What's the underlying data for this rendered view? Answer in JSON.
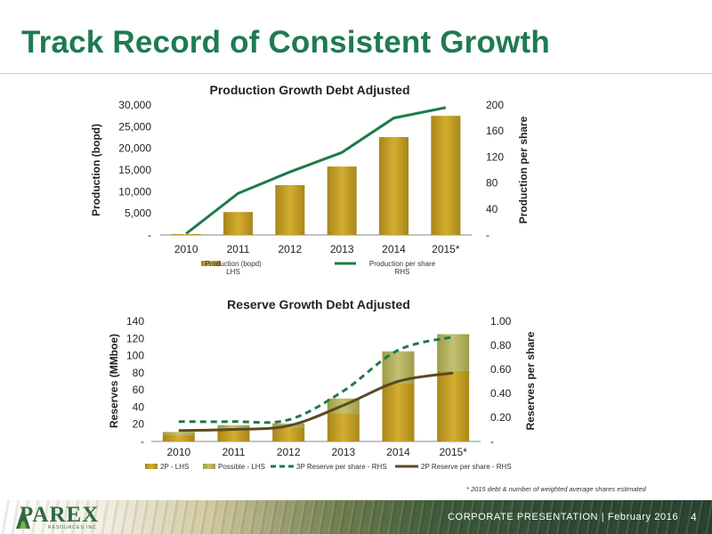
{
  "slide": {
    "title": "Track Record of Consistent Growth"
  },
  "colors": {
    "title_green": "#1f7a52",
    "bar_gold": "#c9a227",
    "bar_light": "#b7b45a",
    "line_green": "#1e7a4a",
    "line_brown": "#5a4a1e"
  },
  "footnote": "* 2015 debt & number of weighted average shares estimated",
  "footer": {
    "text": "CORPORATE PRESENTATION | February 2016",
    "page": "4",
    "logo_text": "PAREX",
    "logo_subtext": "RESOURCES INC"
  },
  "chart_data": [
    {
      "type": "bar",
      "title": "Production Growth Debt Adjusted",
      "categories": [
        "2010",
        "2011",
        "2012",
        "2013",
        "2014",
        "2015*"
      ],
      "ylabel": "Production (bopd)",
      "y2label": "Production per share",
      "ylim": [
        0,
        30000
      ],
      "y2lim": [
        0,
        200
      ],
      "yticks": [
        "-",
        "5,000",
        "10,000",
        "15,000",
        "20,000",
        "25,000",
        "30,000"
      ],
      "y2ticks": [
        "-",
        "40",
        "80",
        "120",
        "160",
        "200"
      ],
      "series": [
        {
          "name": "Production (bopd)\nLHS",
          "type": "bar",
          "axis": "left",
          "values": [
            200,
            5300,
            11500,
            15800,
            22600,
            27500
          ]
        },
        {
          "name": "Production per share\nRHS",
          "type": "line",
          "axis": "right",
          "values": [
            2,
            64,
            97,
            127,
            180,
            196
          ]
        }
      ],
      "legend": "bottom"
    },
    {
      "type": "bar",
      "title": "Reserve Growth Debt Adjusted",
      "categories": [
        "2010",
        "2011",
        "2012",
        "2013",
        "2014",
        "2015*"
      ],
      "ylabel": "Reserves (MMboe)",
      "y2label": "Reserves per share",
      "ylim": [
        0,
        140
      ],
      "y2lim": [
        0,
        1.0
      ],
      "yticks": [
        "-",
        "20",
        "40",
        "60",
        "80",
        "100",
        "120",
        "140"
      ],
      "y2ticks": [
        "-",
        "0.20",
        "0.40",
        "0.60",
        "0.80",
        "1.00"
      ],
      "series": [
        {
          "name": "2P - LHS",
          "type": "stacked-bar",
          "axis": "left",
          "values": [
            8,
            14,
            16,
            33,
            68,
            82
          ]
        },
        {
          "name": "Possible - LHS",
          "type": "stacked-bar",
          "axis": "left",
          "values": [
            3,
            5,
            5,
            17,
            37,
            43
          ]
        },
        {
          "name": "3P Reserve per share - RHS",
          "type": "line-dashed",
          "axis": "right",
          "values": [
            0.165,
            0.165,
            0.18,
            0.42,
            0.76,
            0.87
          ]
        },
        {
          "name": "2P Reserve per share - RHS",
          "type": "line",
          "axis": "right",
          "values": [
            0.09,
            0.1,
            0.13,
            0.3,
            0.5,
            0.57
          ]
        }
      ],
      "legend": "bottom"
    }
  ]
}
